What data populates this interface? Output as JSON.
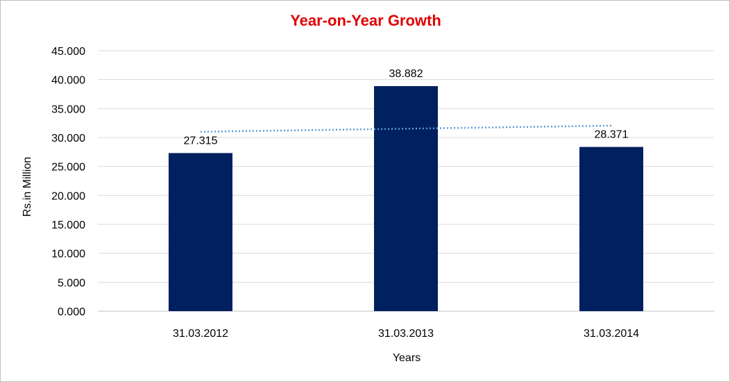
{
  "chart_data": {
    "type": "bar",
    "title": "Year-on-Year Growth",
    "title_color": "#e00000",
    "xlabel": "Years",
    "ylabel": "Rs.in Million",
    "categories": [
      "31.03.2012",
      "31.03.2013",
      "31.03.2014"
    ],
    "series": [
      {
        "values": [
          27.315,
          38.882,
          28.371
        ],
        "data_labels": [
          "27.315",
          "38.882",
          "28.371"
        ],
        "color": "#002060"
      }
    ],
    "trendline": {
      "type": "linear",
      "style": "dotted",
      "color": "#5b9bd5"
    },
    "ylim": [
      0,
      45
    ],
    "yticks": [
      "0.000",
      "5.000",
      "10.000",
      "15.000",
      "20.000",
      "25.000",
      "30.000",
      "35.000",
      "40.000",
      "45.000"
    ],
    "grid": true,
    "gridline_color": "#d9d9d9"
  }
}
